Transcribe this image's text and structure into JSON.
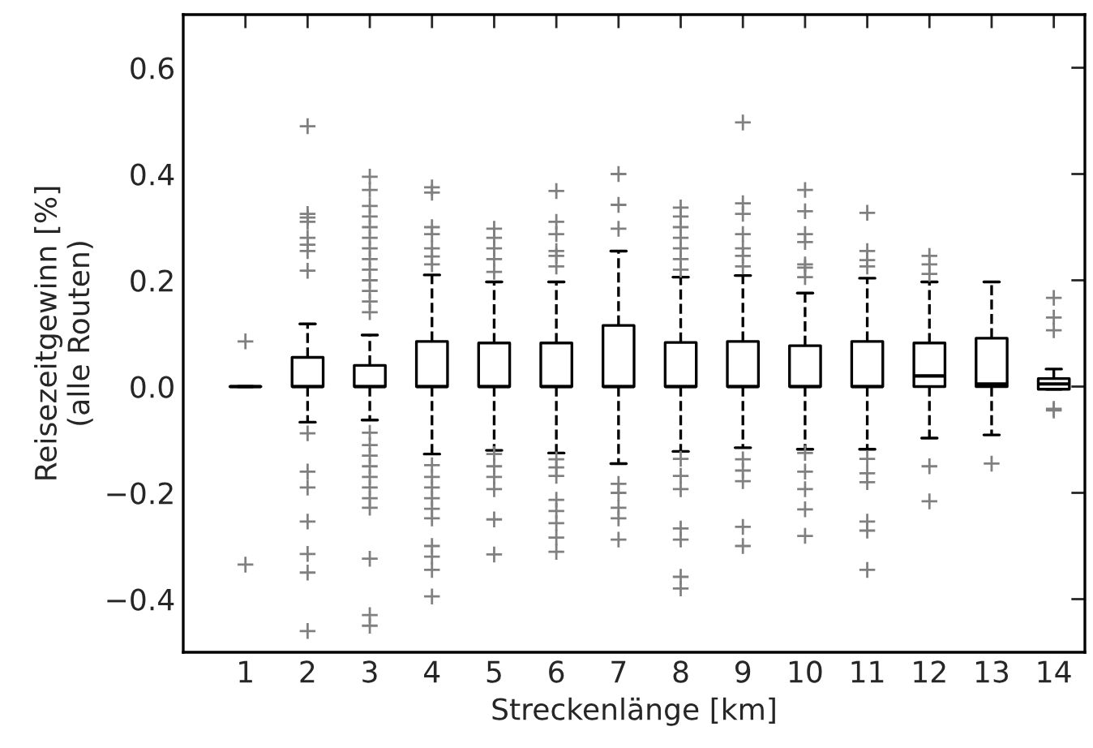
{
  "chart_data": {
    "type": "box",
    "xlabel": "Streckenlänge [km]",
    "ylabel": "Reisezeitgewinn [%]\n(alle Routen)",
    "categories": [
      "1",
      "2",
      "3",
      "4",
      "5",
      "6",
      "7",
      "8",
      "9",
      "10",
      "11",
      "12",
      "13",
      "14"
    ],
    "ylim": [
      -0.5,
      0.7
    ],
    "yticks": [
      {
        "value": -0.4,
        "label": "−0.4"
      },
      {
        "value": -0.2,
        "label": "−0.2"
      },
      {
        "value": 0.0,
        "label": "0.0"
      },
      {
        "value": 0.2,
        "label": "0.2"
      },
      {
        "value": 0.4,
        "label": "0.4"
      },
      {
        "value": 0.6,
        "label": "0.6"
      }
    ],
    "grid": false,
    "marker": "cross",
    "line_style": "dashed",
    "series": [
      {
        "color": "#000000",
        "boxes": [
          {
            "low": 0.0,
            "q1": 0.0,
            "median": 0.0,
            "q3": 0.0,
            "high": 0.0,
            "outliers": [
              0.085,
              -0.335
            ]
          },
          {
            "low": -0.067,
            "q1": 0.0,
            "median": 0.0,
            "q3": 0.055,
            "high": 0.118,
            "outliers": [
              0.49,
              0.325,
              0.318,
              0.31,
              0.28,
              0.267,
              0.255,
              0.218,
              -0.088,
              -0.16,
              -0.19,
              -0.254,
              -0.315,
              -0.35,
              -0.46
            ]
          },
          {
            "low": -0.063,
            "q1": 0.0,
            "median": 0.0,
            "q3": 0.04,
            "high": 0.097,
            "outliers": [
              0.395,
              0.37,
              0.34,
              0.32,
              0.3,
              0.28,
              0.26,
              0.24,
              0.22,
              0.2,
              0.18,
              0.16,
              0.14,
              -0.087,
              -0.11,
              -0.13,
              -0.15,
              -0.17,
              -0.19,
              -0.21,
              -0.228,
              -0.324,
              -0.43,
              -0.45
            ]
          },
          {
            "low": -0.127,
            "q1": 0.0,
            "median": 0.0,
            "q3": 0.085,
            "high": 0.21,
            "outliers": [
              0.375,
              0.365,
              0.3,
              0.287,
              0.26,
              0.245,
              0.23,
              -0.148,
              -0.17,
              -0.19,
              -0.21,
              -0.23,
              -0.248,
              -0.3,
              -0.32,
              -0.345,
              -0.395
            ]
          },
          {
            "low": -0.12,
            "q1": 0.0,
            "median": 0.0,
            "q3": 0.082,
            "high": 0.197,
            "outliers": [
              0.297,
              0.28,
              0.26,
              0.24,
              0.216,
              -0.127,
              -0.15,
              -0.17,
              -0.193,
              -0.25,
              -0.316
            ]
          },
          {
            "low": -0.125,
            "q1": 0.0,
            "median": 0.0,
            "q3": 0.082,
            "high": 0.197,
            "outliers": [
              0.368,
              0.31,
              0.287,
              0.255,
              0.246,
              0.226,
              -0.137,
              -0.152,
              -0.168,
              -0.213,
              -0.234,
              -0.257,
              -0.284,
              -0.311
            ]
          },
          {
            "low": -0.145,
            "q1": 0.0,
            "median": 0.0,
            "q3": 0.115,
            "high": 0.255,
            "outliers": [
              0.4,
              0.342,
              0.297,
              -0.183,
              -0.2,
              -0.228,
              -0.248,
              -0.288
            ]
          },
          {
            "low": -0.122,
            "q1": 0.0,
            "median": 0.0,
            "q3": 0.083,
            "high": 0.206,
            "outliers": [
              0.337,
              0.32,
              0.3,
              0.28,
              0.26,
              0.24,
              0.22,
              -0.136,
              -0.168,
              -0.193,
              -0.267,
              -0.288,
              -0.358,
              -0.38
            ]
          },
          {
            "low": -0.115,
            "q1": 0.0,
            "median": 0.0,
            "q3": 0.085,
            "high": 0.209,
            "outliers": [
              0.497,
              0.345,
              0.325,
              0.287,
              0.26,
              0.246,
              0.226,
              -0.137,
              -0.158,
              -0.178,
              -0.264,
              -0.3
            ]
          },
          {
            "low": -0.118,
            "q1": 0.0,
            "median": 0.0,
            "q3": 0.077,
            "high": 0.176,
            "outliers": [
              0.37,
              0.33,
              0.287,
              0.272,
              0.23,
              0.224,
              0.206,
              -0.125,
              -0.16,
              -0.193,
              -0.231,
              -0.281
            ]
          },
          {
            "low": -0.118,
            "q1": 0.0,
            "median": 0.0,
            "q3": 0.085,
            "high": 0.204,
            "outliers": [
              0.327,
              0.255,
              0.238,
              0.226,
              -0.136,
              -0.163,
              -0.18,
              -0.254,
              -0.271,
              -0.345
            ]
          },
          {
            "low": -0.097,
            "q1": 0.0,
            "median": 0.02,
            "q3": 0.082,
            "high": 0.197,
            "outliers": [
              0.246,
              0.23,
              0.212,
              -0.15,
              -0.216
            ]
          },
          {
            "low": -0.091,
            "q1": 0.0,
            "median": 0.005,
            "q3": 0.091,
            "high": 0.197,
            "outliers": [
              -0.145
            ]
          },
          {
            "low": -0.005,
            "q1": -0.005,
            "median": 0.005,
            "q3": 0.015,
            "high": 0.033,
            "outliers": [
              0.167,
              0.13,
              0.106,
              -0.042,
              -0.045
            ]
          }
        ]
      }
    ]
  }
}
